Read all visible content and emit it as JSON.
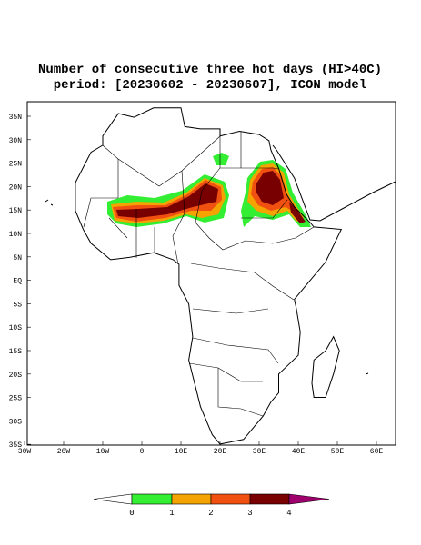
{
  "title": [
    "Number of consecutive three hot days (HI>40C)",
    "period: [20230602 - 20230607], ICON model"
  ],
  "lat_labels": [
    "35N",
    "30N",
    "25N",
    "20N",
    "15N",
    "10N",
    "5N",
    "EQ",
    "5S",
    "10S",
    "15S",
    "20S",
    "25S",
    "30S",
    "35S"
  ],
  "lon_labels": [
    "30W",
    "20W",
    "10W",
    "0",
    "10E",
    "20E",
    "30E",
    "40E",
    "50E",
    "60E"
  ],
  "colorbar": {
    "labels": [
      "0",
      "1",
      "2",
      "3",
      "4"
    ]
  }
}
